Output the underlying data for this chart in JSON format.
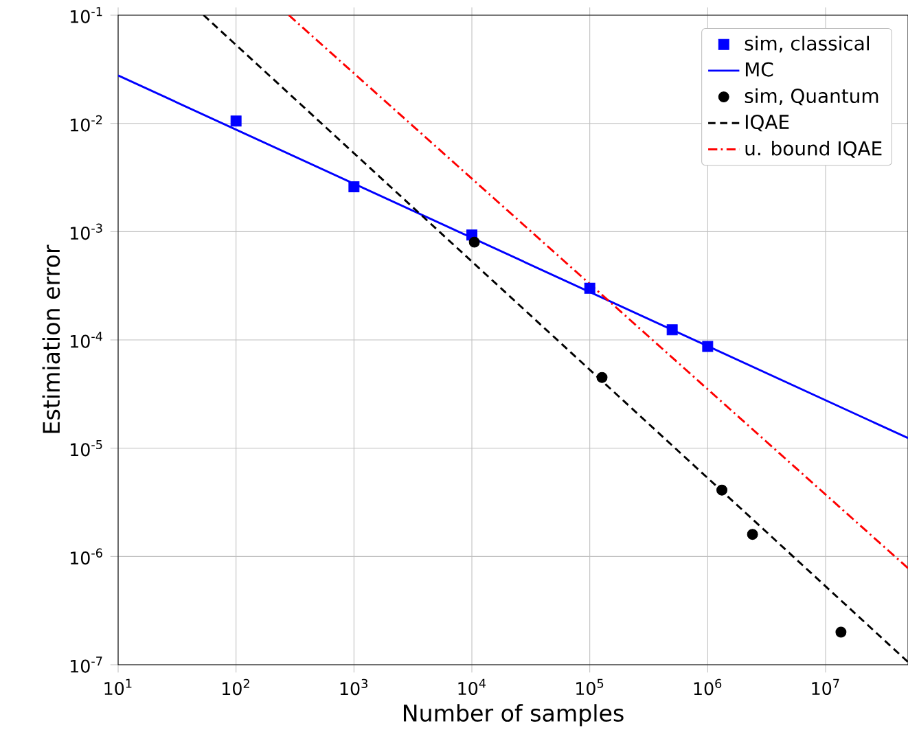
{
  "chart_data": {
    "type": "scatter",
    "xlabel": "Number of samples",
    "ylabel": "Estimiation error",
    "log": "xy",
    "grid": true,
    "legend": "top right",
    "xlim": [
      10,
      50000000
    ],
    "ylim": [
      1e-07,
      0.1
    ],
    "xticks": [
      {
        "value": 10,
        "label": "10$^{1}$"
      },
      {
        "value": 100,
        "label": "10$^{2}$"
      },
      {
        "value": 1000,
        "label": "10$^{3}$"
      },
      {
        "value": 10000,
        "label": "10$^{4}$"
      },
      {
        "value": 100000,
        "label": "10$^{5}$"
      },
      {
        "value": 1000000,
        "label": "10$^{6}$"
      },
      {
        "value": 10000000,
        "label": "10$^{7}$"
      }
    ],
    "yticks": [
      {
        "value": 1e-07,
        "label": "10$^{-7}$"
      },
      {
        "value": 1e-06,
        "label": "10$^{-6}$"
      },
      {
        "value": 1e-05,
        "label": "10$^{-5}$"
      },
      {
        "value": 0.0001,
        "label": "10$^{-4}$"
      },
      {
        "value": 0.001,
        "label": "10$^{-3}$"
      },
      {
        "value": 0.01,
        "label": "10$^{-2}$"
      },
      {
        "value": 0.1,
        "label": "10$^{-1}$"
      }
    ],
    "series": [
      {
        "name": "sim, classical",
        "marker": "square",
        "color": "#0000ff",
        "x": [
          100,
          1000,
          10000,
          100000,
          500000,
          1000000
        ],
        "values": [
          0.0105,
          0.0026,
          0.00093,
          0.0003,
          0.000124,
          8.7e-05
        ]
      },
      {
        "name": "MC",
        "type": "line",
        "line_style": "solid",
        "color": "#0000ff",
        "x": [
          10,
          50000000
        ],
        "values": [
          0.0277,
          1.24e-05
        ]
      },
      {
        "name": "sim, Quantum",
        "marker": "circle",
        "color": "#000000",
        "x": [
          10500,
          127000,
          1320000,
          2400000,
          13500000
        ],
        "values": [
          0.0008,
          4.5e-05,
          4.1e-06,
          1.6e-06,
          2e-07
        ]
      },
      {
        "name": "IQAE",
        "type": "line",
        "line_style": "dashed",
        "color": "#000000",
        "x": [
          53,
          50000000
        ],
        "values": [
          0.1,
          1.06e-07
        ]
      },
      {
        "name": "u. bound IQAE",
        "type": "line",
        "line_style": "dashdot",
        "color": "#ff0000",
        "x": [
          280,
          50000000
        ],
        "values": [
          0.1,
          7.8e-07
        ]
      }
    ]
  }
}
